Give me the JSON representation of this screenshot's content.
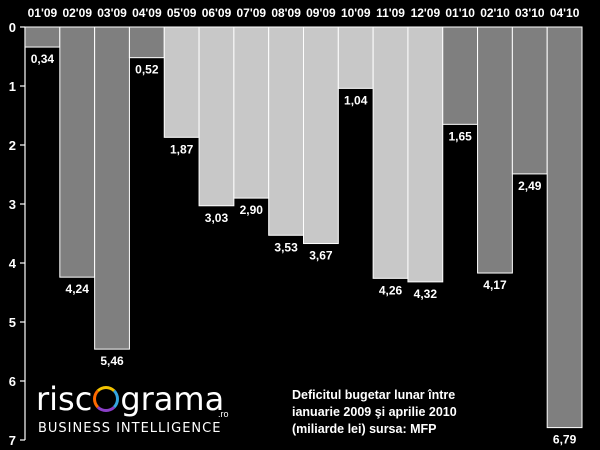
{
  "chart_data": {
    "type": "bar",
    "orientation": "hanging",
    "categories": [
      "01'09",
      "02'09",
      "03'09",
      "04'09",
      "05'09",
      "06'09",
      "07'09",
      "08'09",
      "09'09",
      "10'09",
      "11'09",
      "12'09",
      "01'10",
      "02'10",
      "03'10",
      "04'10"
    ],
    "values": [
      0.34,
      4.24,
      5.46,
      0.52,
      1.87,
      3.03,
      2.9,
      3.53,
      3.67,
      1.04,
      4.26,
      4.32,
      1.65,
      4.17,
      2.49,
      6.79
    ],
    "value_labels": [
      "0,34",
      "4,24",
      "5,46",
      "0,52",
      "1,87",
      "3,03",
      "2,90",
      "3,53",
      "3,67",
      "1,04",
      "4,26",
      "4,32",
      "1,65",
      "4,17",
      "2,49",
      "6,79"
    ],
    "bar_colors": [
      "#7f7f7f",
      "#7f7f7f",
      "#7f7f7f",
      "#7f7f7f",
      "#c8c8c8",
      "#c8c8c8",
      "#c8c8c8",
      "#c8c8c8",
      "#c8c8c8",
      "#c8c8c8",
      "#c8c8c8",
      "#c8c8c8",
      "#7f7f7f",
      "#7f7f7f",
      "#7f7f7f",
      "#7f7f7f"
    ],
    "y_ticks": [
      "0",
      "1",
      "2",
      "3",
      "4",
      "5",
      "6",
      "7"
    ],
    "ylim": [
      0,
      7
    ],
    "grid": false,
    "legend": "none",
    "title": "",
    "xlabel": "",
    "ylabel": ""
  },
  "caption": {
    "line1": "Deficitul bugetar lunar între",
    "line2": "ianuarie 2009 şi aprilie 2010",
    "line3": "(miliarde lei) sursa: MFP"
  },
  "logo": {
    "word_left": "risc",
    "word_right": "grama",
    "suffix": ".ro",
    "tagline": "BUSINESS INTELLIGENCE"
  },
  "colors": {
    "background": "#000000",
    "text": "#ffffff",
    "bar_dark": "#7f7f7f",
    "bar_light": "#c8c8c8",
    "bar_border": "#ffffff"
  }
}
